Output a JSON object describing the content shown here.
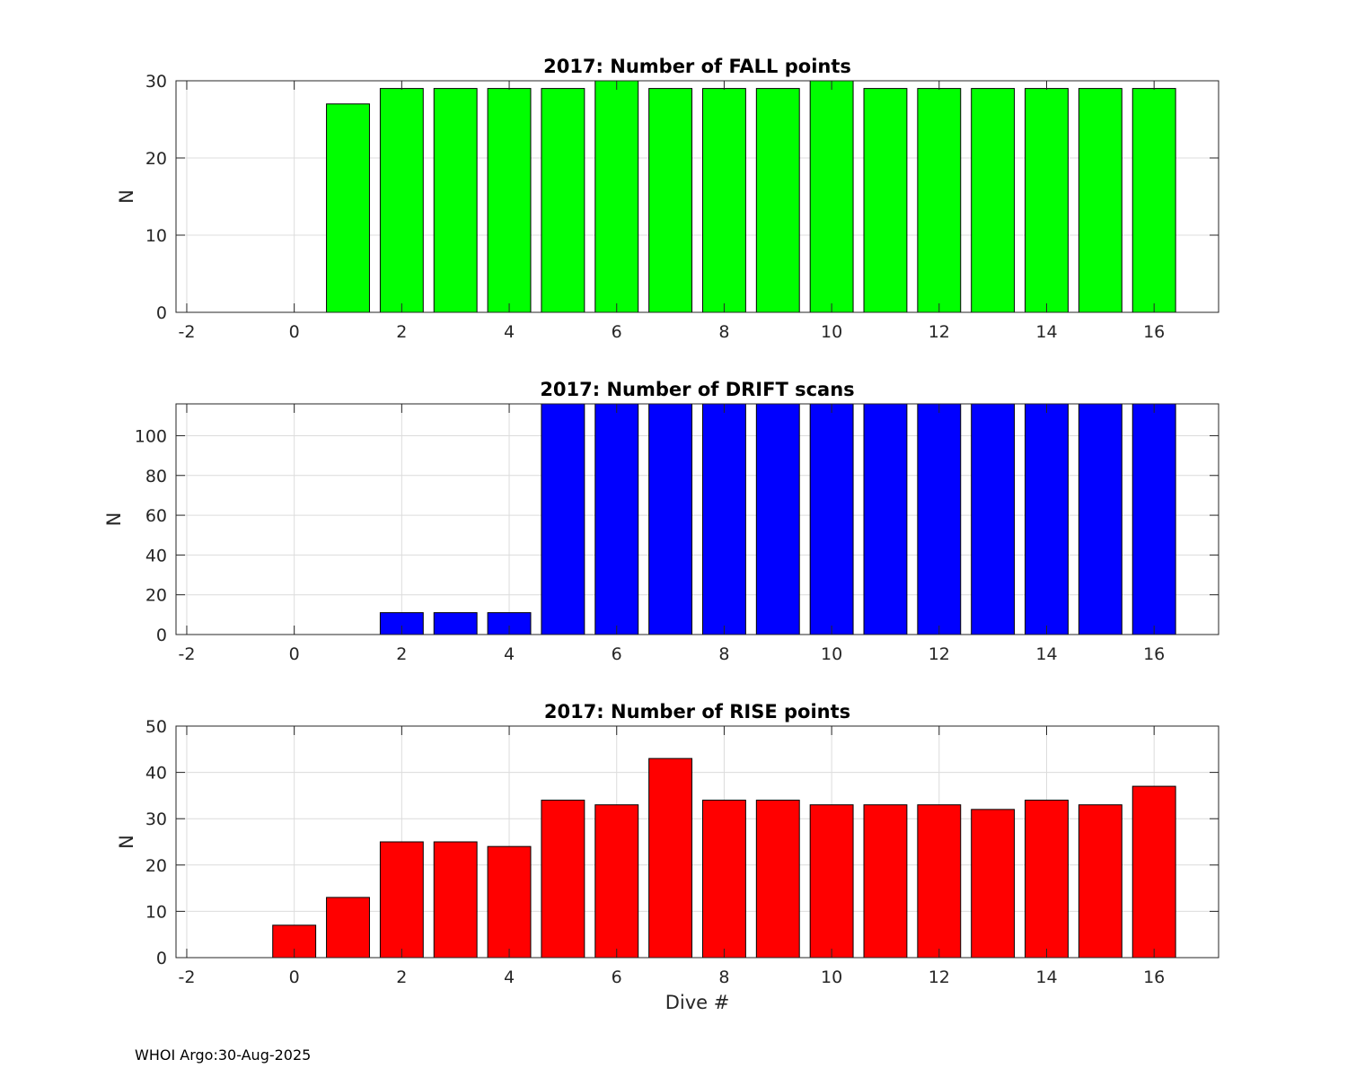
{
  "footer": "WHOI Argo:30-Aug-2025",
  "chart_data": [
    {
      "type": "bar",
      "title": "2017: Number of FALL points",
      "xlabel": "",
      "ylabel": "N",
      "color": "#00ff00",
      "x": [
        1,
        2,
        3,
        4,
        5,
        6,
        7,
        8,
        9,
        10,
        11,
        12,
        13,
        14,
        15,
        16
      ],
      "values": [
        27,
        29,
        29,
        29,
        29,
        30,
        29,
        29,
        29,
        30,
        29,
        29,
        29,
        29,
        29,
        29
      ],
      "xlim": [
        -2.2,
        17.2
      ],
      "ylim": [
        0,
        30
      ],
      "xticks": [
        -2,
        0,
        2,
        4,
        6,
        8,
        10,
        12,
        14,
        16
      ],
      "yticks": [
        0,
        10,
        20,
        30
      ],
      "grid": true
    },
    {
      "type": "bar",
      "title": "2017: Number of DRIFT scans",
      "xlabel": "",
      "ylabel": "N",
      "color": "#0000ff",
      "x": [
        2,
        3,
        4,
        5,
        6,
        7,
        8,
        9,
        10,
        11,
        12,
        13,
        14,
        15,
        16
      ],
      "values": [
        11,
        11,
        11,
        116,
        116,
        116,
        116,
        116,
        116,
        116,
        116,
        116,
        116,
        116,
        116
      ],
      "xlim": [
        -2.2,
        17.2
      ],
      "ylim": [
        0,
        116
      ],
      "xticks": [
        -2,
        0,
        2,
        4,
        6,
        8,
        10,
        12,
        14,
        16
      ],
      "yticks": [
        0,
        20,
        40,
        60,
        80,
        100
      ],
      "grid": true
    },
    {
      "type": "bar",
      "title": "2017: Number of RISE points",
      "xlabel": "Dive #",
      "ylabel": "N",
      "color": "#ff0000",
      "x": [
        0,
        1,
        2,
        3,
        4,
        5,
        6,
        7,
        8,
        9,
        10,
        11,
        12,
        13,
        14,
        15,
        16
      ],
      "values": [
        7,
        13,
        25,
        25,
        24,
        34,
        33,
        43,
        34,
        34,
        33,
        33,
        33,
        32,
        34,
        33,
        37
      ],
      "xlim": [
        -2.2,
        17.2
      ],
      "ylim": [
        0,
        50
      ],
      "xticks": [
        -2,
        0,
        2,
        4,
        6,
        8,
        10,
        12,
        14,
        16
      ],
      "yticks": [
        0,
        10,
        20,
        30,
        40,
        50
      ],
      "grid": true
    }
  ]
}
